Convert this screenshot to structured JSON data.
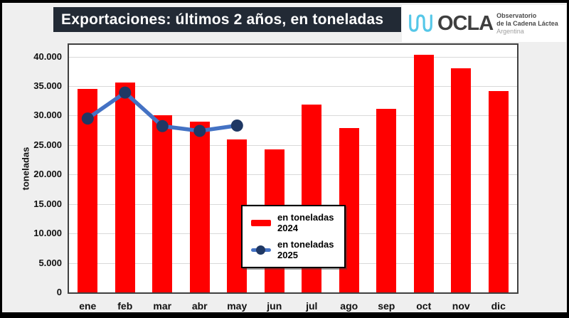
{
  "header": {
    "title": "Exportaciones: últimos 2 años, en toneladas"
  },
  "logo": {
    "acronym": "OCLA",
    "line1": "Observatorio",
    "line2": "de la Cadena Láctea",
    "line3": "Argentina",
    "wave_color": "#55c7e8"
  },
  "chart_data": {
    "type": "bar",
    "title": "Exportaciones: últimos 2 años, en toneladas",
    "categories": [
      "ene",
      "feb",
      "mar",
      "abr",
      "may",
      "jun",
      "jul",
      "ago",
      "sep",
      "oct",
      "nov",
      "dic"
    ],
    "series": [
      {
        "name": "en toneladas 2024",
        "type": "bar",
        "color": "#ff0000",
        "values": [
          34500,
          35600,
          30000,
          29000,
          25900,
          24300,
          31900,
          27900,
          31100,
          40300,
          38000,
          34200
        ]
      },
      {
        "name": "en toneladas 2025",
        "type": "line",
        "color": "#4472c4",
        "marker_color": "#1f3864",
        "values": [
          29500,
          33900,
          28200,
          27400,
          28300
        ]
      }
    ],
    "xlabel": "",
    "ylabel": "toneladas",
    "ylim": [
      0,
      42000
    ],
    "grid": "horizontal",
    "legend_position": "inside-center",
    "y_ticks": [
      {
        "value": 0,
        "label": "0"
      },
      {
        "value": 5000,
        "label": "5.000"
      },
      {
        "value": 10000,
        "label": "10.000"
      },
      {
        "value": 15000,
        "label": "15.000"
      },
      {
        "value": 20000,
        "label": "20.000"
      },
      {
        "value": 25000,
        "label": "25.000"
      },
      {
        "value": 30000,
        "label": "30.000"
      },
      {
        "value": 35000,
        "label": "35.000"
      },
      {
        "value": 40000,
        "label": "40.000"
      }
    ],
    "colors": {
      "page_bg": "#efefef",
      "plot_bg": "#ffffff",
      "plot_border": "#404040",
      "grid": "#d9d9d9",
      "title_bg": "#222a35",
      "title_fg": "#ffffff"
    }
  }
}
